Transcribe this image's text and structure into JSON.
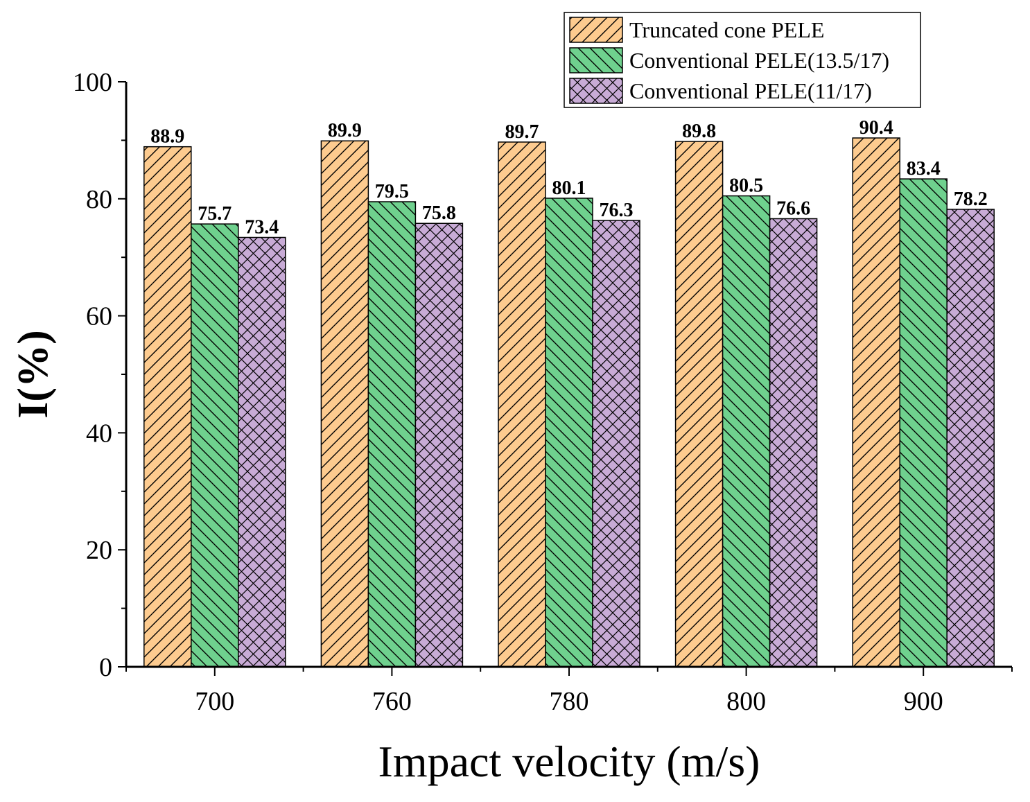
{
  "chart_data": {
    "type": "bar",
    "title": "",
    "xlabel": "Impact velocity (m/s)",
    "ylabel": "I(%)",
    "categories": [
      "700",
      "760",
      "780",
      "800",
      "900"
    ],
    "ylim": [
      0,
      100
    ],
    "yticks": [
      0,
      20,
      40,
      60,
      80,
      100
    ],
    "grid": false,
    "legend_position": "top-right",
    "series": [
      {
        "name": "Truncated cone PELE",
        "values": [
          88.9,
          89.9,
          89.7,
          89.8,
          90.4
        ],
        "labels": [
          "88.9",
          "89.9",
          "89.7",
          "89.8",
          "90.4"
        ],
        "color": "#FDCB8F",
        "pattern": "forward-diagonal"
      },
      {
        "name": "Conventional PELE(13.5/17)",
        "values": [
          75.7,
          79.5,
          80.1,
          80.5,
          83.4
        ],
        "labels": [
          "75.7",
          "79.5",
          "80.1",
          "80.5",
          "83.4"
        ],
        "color": "#6FD18E",
        "pattern": "backward-diagonal"
      },
      {
        "name": "Conventional PELE(11/17)",
        "values": [
          73.4,
          75.8,
          76.3,
          76.6,
          78.2
        ],
        "labels": [
          "73.4",
          "75.8",
          "76.3",
          "76.6",
          "78.2"
        ],
        "color": "#C8ABD6",
        "pattern": "crosshatch"
      }
    ]
  }
}
